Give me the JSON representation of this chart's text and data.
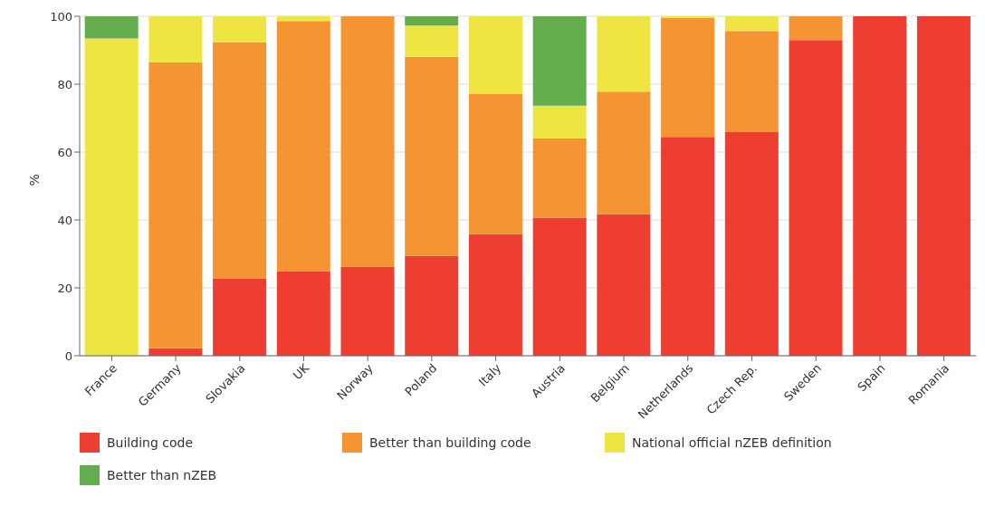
{
  "chart_data": {
    "type": "bar",
    "stacked": true,
    "ylabel": "%",
    "categories": [
      "France",
      "Germany",
      "Slovakia",
      "UK",
      "Norway",
      "Poland",
      "Italy",
      "Austria",
      "Belgium",
      "Netherlands",
      "Czech Rep.",
      "Sweden",
      "Spain",
      "Romania"
    ],
    "series": [
      {
        "name": "Building code",
        "color": "#ee3e32",
        "values": [
          0,
          2.2,
          22.8,
          24.9,
          26.3,
          29.5,
          35.8,
          40.7,
          41.7,
          64.5,
          65.9,
          93,
          100,
          100
        ]
      },
      {
        "name": "Better than building code",
        "color": "#f59433",
        "values": [
          0,
          84.2,
          69.6,
          73.7,
          73.7,
          58.6,
          41.4,
          23.3,
          36.1,
          35,
          29.8,
          7,
          0,
          0
        ]
      },
      {
        "name": "National official nZEB definition",
        "color": "#eee543",
        "values": [
          93.5,
          13.6,
          7.6,
          1.4,
          0,
          9.2,
          22.8,
          9.7,
          22.2,
          0.5,
          4.3,
          0,
          0,
          0
        ]
      },
      {
        "name": "Better than nZEB",
        "color": "#63ad4f",
        "values": [
          6.5,
          0,
          0,
          0,
          0,
          2.7,
          0,
          26.3,
          0,
          0,
          0,
          0,
          0,
          0
        ]
      }
    ],
    "ylim": [
      0,
      100
    ],
    "yticks": [
      0,
      20,
      40,
      60,
      80,
      100
    ],
    "grid": "y",
    "legend": "bottom"
  }
}
